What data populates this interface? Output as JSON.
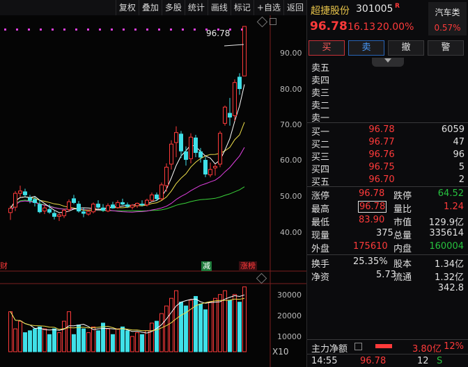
{
  "toolbar": {
    "buttons": [
      "复权",
      "叠加",
      "多股",
      "统计",
      "画线",
      "标记",
      "+自选",
      "返回"
    ]
  },
  "chart": {
    "price_axis": [
      "90.00",
      "80.00",
      "70.00",
      "60.00",
      "50.00",
      "40.00"
    ],
    "volume_axis": [
      "30000",
      "20000",
      "10000"
    ],
    "peak_label": "96.78",
    "tags": {
      "cai": "财",
      "jian": "减",
      "zhangbang": "涨榜"
    },
    "volume_unit": "X10",
    "colors": {
      "up": "#ff3a3a",
      "down": "#3fe0e8",
      "ma5": "#ffffff",
      "ma10": "#f0e04a",
      "ma20": "#e040e0",
      "ma60": "#3ad23a"
    }
  },
  "chart_data": {
    "type": "candlestick",
    "price_ylim": [
      35.0,
      97.5
    ],
    "volume_ylim": [
      0,
      35000
    ],
    "candles": [
      {
        "o": 48.4,
        "h": 50.2,
        "l": 46.5,
        "c": 49.5
      },
      {
        "o": 49.8,
        "h": 54.0,
        "l": 48.8,
        "c": 53.4
      },
      {
        "o": 53.4,
        "h": 55.4,
        "l": 52.5,
        "c": 54.0
      },
      {
        "o": 53.8,
        "h": 54.6,
        "l": 52.4,
        "c": 53.0
      },
      {
        "o": 52.2,
        "h": 53.0,
        "l": 50.8,
        "c": 51.6
      },
      {
        "o": 51.8,
        "h": 52.5,
        "l": 50.0,
        "c": 51.0
      },
      {
        "o": 50.5,
        "h": 51.8,
        "l": 48.2,
        "c": 48.6
      },
      {
        "o": 48.8,
        "h": 50.4,
        "l": 48.0,
        "c": 49.6
      },
      {
        "o": 49.2,
        "h": 50.5,
        "l": 48.1,
        "c": 48.5
      },
      {
        "o": 48.2,
        "h": 49.0,
        "l": 46.6,
        "c": 47.4
      },
      {
        "o": 47.4,
        "h": 48.2,
        "l": 46.2,
        "c": 47.8
      },
      {
        "o": 47.6,
        "h": 49.4,
        "l": 47.0,
        "c": 49.0
      },
      {
        "o": 49.2,
        "h": 51.8,
        "l": 48.6,
        "c": 51.2
      },
      {
        "o": 52.0,
        "h": 53.0,
        "l": 50.6,
        "c": 51.0
      },
      {
        "o": 50.6,
        "h": 51.4,
        "l": 48.4,
        "c": 48.8
      },
      {
        "o": 48.6,
        "h": 49.6,
        "l": 47.2,
        "c": 48.2
      },
      {
        "o": 48.0,
        "h": 49.2,
        "l": 47.6,
        "c": 48.7
      },
      {
        "o": 48.6,
        "h": 51.0,
        "l": 48.2,
        "c": 50.6
      },
      {
        "o": 50.6,
        "h": 51.6,
        "l": 49.4,
        "c": 49.8
      },
      {
        "o": 49.6,
        "h": 50.6,
        "l": 48.6,
        "c": 49.0
      },
      {
        "o": 48.8,
        "h": 50.8,
        "l": 48.5,
        "c": 50.2
      },
      {
        "o": 50.4,
        "h": 51.2,
        "l": 49.4,
        "c": 49.6
      },
      {
        "o": 49.7,
        "h": 51.6,
        "l": 49.4,
        "c": 51.0
      },
      {
        "o": 51.0,
        "h": 52.0,
        "l": 50.3,
        "c": 50.6
      },
      {
        "o": 50.4,
        "h": 51.0,
        "l": 49.6,
        "c": 50.0
      },
      {
        "o": 49.8,
        "h": 50.6,
        "l": 49.2,
        "c": 50.3
      },
      {
        "o": 50.2,
        "h": 51.0,
        "l": 49.6,
        "c": 50.8
      },
      {
        "o": 50.6,
        "h": 51.6,
        "l": 50.0,
        "c": 50.4
      },
      {
        "o": 50.4,
        "h": 52.0,
        "l": 50.0,
        "c": 51.6
      },
      {
        "o": 51.6,
        "h": 53.6,
        "l": 51.2,
        "c": 53.0
      },
      {
        "o": 53.0,
        "h": 53.6,
        "l": 51.4,
        "c": 52.0
      },
      {
        "o": 52.0,
        "h": 56.2,
        "l": 51.6,
        "c": 55.6
      },
      {
        "o": 55.4,
        "h": 61.2,
        "l": 53.8,
        "c": 60.2
      },
      {
        "o": 61.0,
        "h": 67.2,
        "l": 59.6,
        "c": 66.2
      },
      {
        "o": 66.6,
        "h": 70.8,
        "l": 62.8,
        "c": 69.2
      },
      {
        "o": 68.8,
        "h": 69.6,
        "l": 62.6,
        "c": 64.4
      },
      {
        "o": 64.2,
        "h": 65.6,
        "l": 60.6,
        "c": 62.2
      },
      {
        "o": 62.4,
        "h": 69.0,
        "l": 61.2,
        "c": 68.0
      },
      {
        "o": 67.8,
        "h": 68.6,
        "l": 62.8,
        "c": 64.0
      },
      {
        "o": 64.2,
        "h": 65.2,
        "l": 61.4,
        "c": 62.8
      },
      {
        "o": 62.0,
        "h": 62.8,
        "l": 57.6,
        "c": 58.4
      },
      {
        "o": 58.2,
        "h": 61.4,
        "l": 57.6,
        "c": 59.6
      },
      {
        "o": 60.0,
        "h": 61.0,
        "l": 58.0,
        "c": 60.4
      },
      {
        "o": 61.0,
        "h": 69.6,
        "l": 60.2,
        "c": 69.0
      },
      {
        "o": 71.6,
        "h": 76.2,
        "l": 71.0,
        "c": 75.8
      },
      {
        "o": 74.2,
        "h": 78.2,
        "l": 71.0,
        "c": 73.2
      },
      {
        "o": 73.6,
        "h": 83.0,
        "l": 72.2,
        "c": 82.2
      },
      {
        "o": 83.6,
        "h": 84.6,
        "l": 79.0,
        "c": 80.6
      },
      {
        "o": 83.9,
        "h": 96.78,
        "l": 83.9,
        "c": 96.78
      }
    ],
    "volume": [
      21000,
      12000,
      16000,
      10000,
      11000,
      12000,
      13000,
      12000,
      9000,
      12000,
      10000,
      16000,
      21000,
      9000,
      14000,
      12000,
      10000,
      13000,
      11000,
      15000,
      12000,
      9000,
      12000,
      13000,
      11000,
      8000,
      10000,
      9000,
      11000,
      15000,
      16000,
      20000,
      24000,
      28000,
      32000,
      26000,
      24000,
      27000,
      29000,
      25000,
      22000,
      26000,
      28000,
      30000,
      32000,
      27000,
      30000,
      26000,
      34000
    ],
    "indicators": [
      "MA5",
      "MA10",
      "MA20",
      "MA60"
    ]
  },
  "quote": {
    "name": "超捷股份",
    "code": "301005",
    "badge": "R",
    "industry": "汽车类",
    "industry_pct": "0.57%",
    "price": "96.78",
    "change": "16.13",
    "change_pct": "20.00%",
    "trade_buttons": [
      "买",
      "卖",
      "撤",
      "警"
    ],
    "asks": [
      {
        "label": "卖五",
        "price": "",
        "vol": ""
      },
      {
        "label": "卖四",
        "price": "",
        "vol": ""
      },
      {
        "label": "卖三",
        "price": "",
        "vol": ""
      },
      {
        "label": "卖二",
        "price": "",
        "vol": ""
      },
      {
        "label": "卖一",
        "price": "",
        "vol": ""
      }
    ],
    "bids": [
      {
        "label": "买一",
        "price": "96.78",
        "vol": "6059"
      },
      {
        "label": "买二",
        "price": "96.77",
        "vol": "47"
      },
      {
        "label": "买三",
        "price": "96.76",
        "vol": "96"
      },
      {
        "label": "买四",
        "price": "96.75",
        "vol": "5"
      },
      {
        "label": "买五",
        "price": "96.70",
        "vol": "2"
      }
    ],
    "stats": {
      "limit_up_lbl": "涨停",
      "limit_up": "96.78",
      "limit_down_lbl": "跌停",
      "limit_down": "64.52",
      "high_lbl": "最高",
      "high": "96.78",
      "vol_ratio_lbl": "量比",
      "vol_ratio": "1.24",
      "low_lbl": "最低",
      "low": "83.90",
      "mktcap_lbl": "市值",
      "mktcap": "129.9亿",
      "cur_vol_lbl": "现量",
      "cur_vol": "375",
      "total_vol_lbl": "总量",
      "total_vol": "335614",
      "outer_lbl": "外盘",
      "outer": "175610",
      "inner_lbl": "内盘",
      "inner": "160004",
      "turnover_lbl": "换手",
      "turnover": "25.35%",
      "equity_lbl": "股本",
      "equity": "1.34亿",
      "nav_lbl": "净资",
      "nav": "5.73",
      "float_lbl": "流通",
      "float": "1.32亿",
      "extra": "342.8"
    },
    "net_flow": {
      "label": "主力净额",
      "value": "3.80亿",
      "pct": "12%"
    },
    "tick": {
      "time": "14:55",
      "price": "96.78",
      "vol": "12",
      "side": "S"
    }
  }
}
